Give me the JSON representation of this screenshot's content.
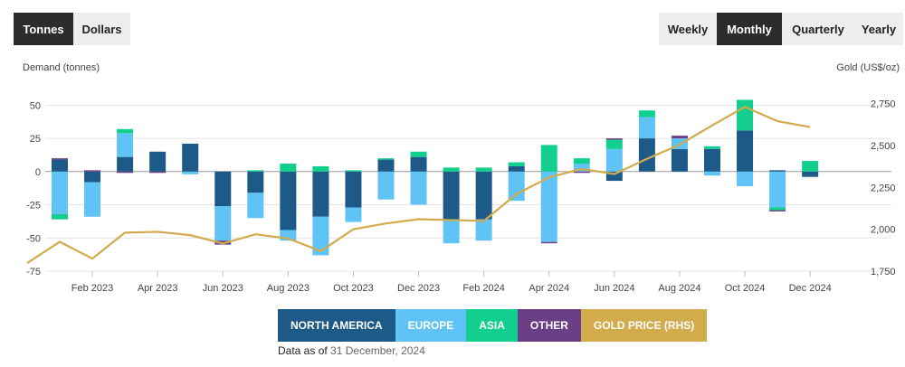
{
  "units": {
    "options": [
      {
        "label": "Tonnes",
        "active": true
      },
      {
        "label": "Dollars",
        "active": false
      }
    ]
  },
  "periods": {
    "options": [
      {
        "label": "Weekly",
        "active": false
      },
      {
        "label": "Monthly",
        "active": true
      },
      {
        "label": "Quarterly",
        "active": false
      },
      {
        "label": "Yearly",
        "active": false
      }
    ]
  },
  "chart_data": {
    "type": "bar",
    "stacked": true,
    "ylabel": "Demand (tonnes)",
    "y2label": "Gold (US$/oz)",
    "ylim": [
      -75,
      55
    ],
    "y2lim": [
      1750,
      2780
    ],
    "yticks": [
      50,
      25,
      0,
      -25,
      -50,
      -75
    ],
    "y2ticks": [
      2750,
      2500,
      2250,
      2000,
      1750
    ],
    "y2tick_labels": [
      "2,750",
      "2,500",
      "2,250",
      "2,000",
      "1,750"
    ],
    "categories": [
      "Jan 2023",
      "Feb 2023",
      "Mar 2023",
      "Apr 2023",
      "May 2023",
      "Jun 2023",
      "Jul 2023",
      "Aug 2023",
      "Sep 2023",
      "Oct 2023",
      "Nov 2023",
      "Dec 2023",
      "Jan 2024",
      "Feb 2024",
      "Mar 2024",
      "Apr 2024",
      "May 2024",
      "Jun 2024",
      "Jul 2024",
      "Aug 2024",
      "Sep 2024",
      "Oct 2024",
      "Nov 2024",
      "Dec 2024"
    ],
    "xtick_labels": [
      "Feb 2023",
      "Apr 2023",
      "Jun 2023",
      "Aug 2023",
      "Oct 2023",
      "Dec 2023",
      "Feb 2024",
      "Apr 2024",
      "Jun 2024",
      "Aug 2024",
      "Oct 2024",
      "Dec 2024"
    ],
    "series": [
      {
        "name": "NORTH AMERICA",
        "color": "#1e5a87",
        "values": [
          9,
          -8,
          11,
          15,
          21,
          -26,
          -16,
          -44,
          -34,
          -27,
          9,
          11,
          -36,
          -36,
          4,
          0,
          0,
          -7,
          25,
          17,
          17,
          31,
          1,
          -4
        ]
      },
      {
        "name": "EUROPE",
        "color": "#5fc3f5",
        "values": [
          -32,
          -26,
          18,
          0,
          -2,
          -26,
          -19,
          -8,
          -29,
          -11,
          -21,
          -25,
          -18,
          -16,
          -22,
          -53,
          6,
          17,
          16,
          8,
          -3,
          -11,
          -27,
          0
        ]
      },
      {
        "name": "ASIA",
        "color": "#12cf8f",
        "values": [
          -4,
          0,
          3,
          0,
          0,
          0,
          1,
          6,
          4,
          1,
          1,
          4,
          3,
          3,
          3,
          20,
          4,
          7,
          5,
          0,
          2,
          23,
          -2,
          8
        ]
      },
      {
        "name": "OTHER",
        "color": "#6a3f85",
        "values": [
          1,
          1,
          -1,
          -1,
          0,
          -3,
          0,
          0,
          0,
          0,
          0,
          0,
          0,
          0,
          0,
          -1,
          -1,
          1,
          0,
          2,
          0,
          0,
          -1,
          0
        ]
      },
      {
        "name": "GOLD PRICE (RHS)",
        "color": "#d1ab4c",
        "type": "line",
        "axis": "right",
        "x": [
          "Dec 2022",
          "Jan 2023",
          "Feb 2023",
          "Mar 2023",
          "Apr 2023",
          "May 2023",
          "Jun 2023",
          "Jul 2023",
          "Aug 2023",
          "Sep 2023",
          "Oct 2023",
          "Nov 2023",
          "Dec 2023",
          "Jan 2024",
          "Feb 2024",
          "Mar 2024",
          "Apr 2024",
          "May 2024",
          "Jun 2024",
          "Jul 2024",
          "Aug 2024",
          "Sep 2024",
          "Oct 2024",
          "Nov 2024",
          "Dec 2024"
        ],
        "values": [
          1798,
          1925,
          1825,
          1980,
          1985,
          1965,
          1915,
          1970,
          1945,
          1870,
          2000,
          2035,
          2060,
          2055,
          2050,
          2210,
          2310,
          2360,
          2330,
          2420,
          2505,
          2620,
          2730,
          2645,
          2610
        ]
      }
    ]
  },
  "legend": {
    "items": [
      {
        "label": "NORTH AMERICA",
        "color": "#1e5a87"
      },
      {
        "label": "EUROPE",
        "color": "#5fc3f5"
      },
      {
        "label": "ASIA",
        "color": "#12cf8f"
      },
      {
        "label": "OTHER",
        "color": "#6a3f85"
      },
      {
        "label": "GOLD PRICE (RHS)",
        "color": "#d1ab4c"
      }
    ]
  },
  "footer": {
    "prefix": "Data as of",
    "date": "31 December, 2024"
  }
}
